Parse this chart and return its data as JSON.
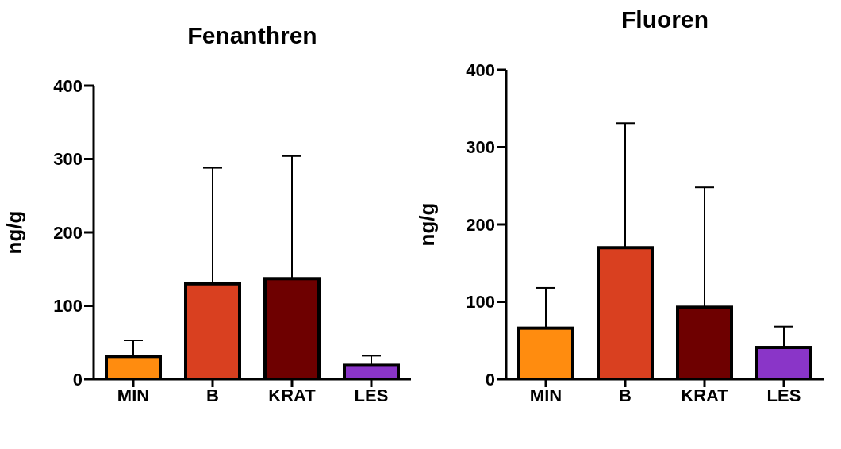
{
  "chart_data": [
    {
      "type": "bar",
      "title": "Fenanthren",
      "ylabel": "ng/g",
      "categories": [
        "MIN",
        "B",
        "KRAT",
        "LES"
      ],
      "values": [
        31,
        130,
        137,
        19
      ],
      "colors": [
        "#ff8c0f",
        "#d94020",
        "#6e0000",
        "#8a35c8"
      ],
      "errors": [
        [
          31,
          53
        ],
        [
          130,
          288
        ],
        [
          137,
          304
        ],
        [
          19,
          32
        ]
      ],
      "ylim": [
        0,
        400
      ],
      "yticks": [
        0,
        100,
        200,
        300,
        400
      ]
    },
    {
      "type": "bar",
      "title": "Fluoren",
      "ylabel": "ng/g",
      "categories": [
        "MIN",
        "B",
        "KRAT",
        "LES"
      ],
      "values": [
        66,
        170,
        93,
        41
      ],
      "colors": [
        "#ff8c0f",
        "#d94020",
        "#6e0000",
        "#8a35c8"
      ],
      "errors": [
        [
          66,
          118
        ],
        [
          170,
          331
        ],
        [
          93,
          248
        ],
        [
          41,
          68
        ]
      ],
      "ylim": [
        0,
        400
      ],
      "yticks": [
        0,
        100,
        200,
        300,
        400
      ]
    }
  ]
}
